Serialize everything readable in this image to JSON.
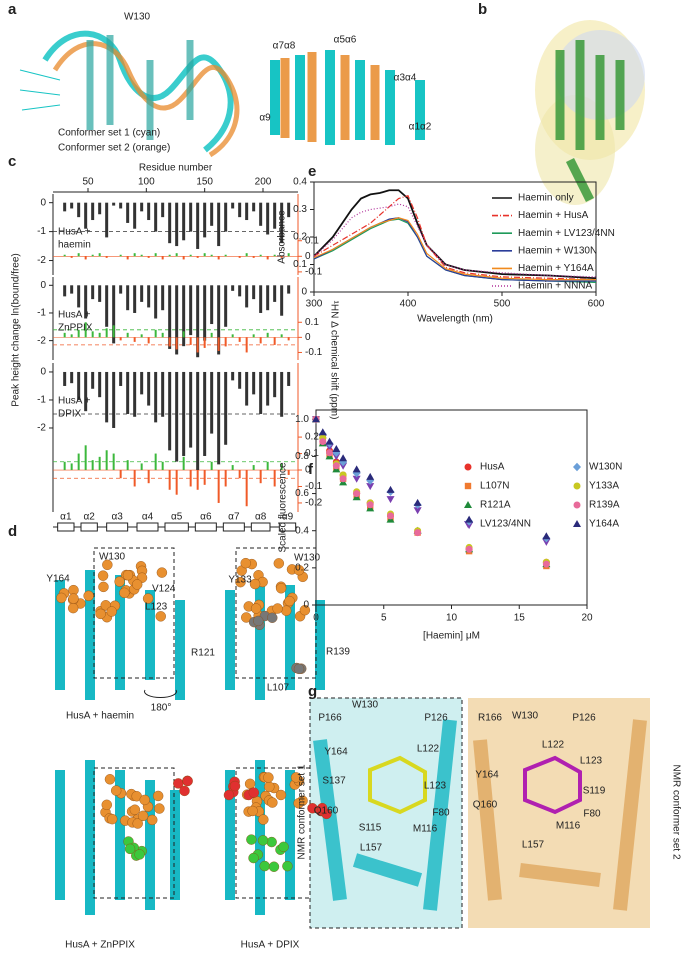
{
  "panels": {
    "a": {
      "label": "a",
      "annotations": [
        "W130",
        "α7α8",
        "α5α6",
        "α3α4",
        "α9",
        "α1α2"
      ],
      "legend": [
        "Conformer set 1 (cyan)",
        "Conformer set 2 (orange)"
      ]
    },
    "b": {
      "label": "b"
    },
    "c": {
      "label": "c"
    },
    "d": {
      "label": "d",
      "annotations": [
        "Y164",
        "W130",
        "V124",
        "L123",
        "Y133",
        "W130",
        "R121",
        "R139",
        "L107"
      ],
      "rotation": "180°",
      "captions": [
        "HusA + haemin",
        "HusA + ZnPPIX",
        "HusA + DPIX"
      ]
    },
    "e": {
      "label": "e"
    },
    "f": {
      "label": "f"
    },
    "g": {
      "label": "g",
      "annotations": [
        "P166",
        "W130",
        "P126",
        "Y164",
        "L122",
        "S137",
        "L123",
        "Q160",
        "S115",
        "M116",
        "F80",
        "L157",
        "R166",
        "W130",
        "P126",
        "L122",
        "L123",
        "Y164",
        "S119",
        "Q160",
        "F80",
        "M116",
        "L157"
      ],
      "side_labels": [
        "NMR conformer set 1",
        "NMR conformer set 2"
      ]
    }
  },
  "chart_data": [
    {
      "type": "bar",
      "xlabel": "Residue number",
      "ylabel": "Peak height change ln(bound/free)",
      "y2label": "¹HN Δ chemical shift (ppm)",
      "xlim": [
        20,
        230
      ],
      "xticks": [
        50,
        100,
        150,
        200
      ],
      "x": [
        30,
        36,
        42,
        48,
        54,
        60,
        66,
        72,
        78,
        84,
        90,
        96,
        102,
        108,
        114,
        120,
        126,
        132,
        138,
        144,
        150,
        156,
        162,
        168,
        174,
        180,
        186,
        192,
        198,
        204,
        210,
        216,
        222
      ],
      "color": "#333333",
      "color_positive": "#3cb83c",
      "color_negative": "#f05a28",
      "panels": [
        {
          "label": [
            "HusA +",
            "haemin"
          ],
          "ylim": [
            -2.5,
            0.3
          ],
          "yticks": [
            0,
            -1,
            -2
          ],
          "y2lim": [
            -0.12,
            0.4
          ],
          "y2ticks": [
            0.1,
            0,
            -0.1
          ],
          "values": [
            -0.3,
            -0.2,
            -0.5,
            -0.9,
            -0.6,
            -0.4,
            -1.2,
            -0.1,
            -0.2,
            -0.7,
            -0.9,
            -0.3,
            -0.6,
            -1.0,
            -0.5,
            -1.4,
            -1.5,
            -1.3,
            -1.0,
            -1.6,
            -1.2,
            -0.8,
            -1.5,
            -1.0,
            -0.2,
            -0.5,
            -0.6,
            -0.3,
            -0.8,
            -1.1,
            -0.9,
            -1.4,
            -0.5
          ],
          "shift": [
            0.01,
            -0.01,
            0.02,
            -0.02,
            0.01,
            0.02,
            -0.01,
            0,
            0.01,
            -0.02,
            0.02,
            0.01,
            -0.01,
            0.02,
            -0.02,
            0.01,
            0.02,
            -0.02,
            0.01,
            -0.01,
            0.02,
            0.01,
            -0.02,
            0.01,
            0,
            -0.01,
            0.02,
            -0.01,
            0.01,
            -0.02,
            0.01,
            -0.01,
            0.02
          ],
          "hlines": [
            {
              "axis": "y",
              "value": -1,
              "color": "#333333"
            }
          ]
        },
        {
          "label": [
            "HusA +",
            "ZnPPIX"
          ],
          "ylim": [
            -2.7,
            0.3
          ],
          "yticks": [
            0,
            -1,
            -2
          ],
          "y2lim": [
            -0.15,
            0.4
          ],
          "y2ticks": [
            0.1,
            0,
            -0.1
          ],
          "values": [
            -0.4,
            -0.3,
            -0.8,
            -1.2,
            -0.5,
            -0.6,
            -1.5,
            -2.1,
            -0.3,
            -0.9,
            -1.0,
            -0.6,
            -0.8,
            -1.2,
            -0.9,
            -2.3,
            -2.5,
            -2.2,
            -1.8,
            -2.6,
            -2.0,
            -1.4,
            -2.5,
            -1.5,
            -0.2,
            -0.4,
            -0.8,
            -0.5,
            -1.0,
            -0.9,
            -0.6,
            -1.1,
            -0.3
          ],
          "shift": [
            0.03,
            0.02,
            0.05,
            0.1,
            0.04,
            0.03,
            0.06,
            0.08,
            -0.02,
            0.03,
            -0.03,
            0.02,
            -0.04,
            0.05,
            0.03,
            -0.06,
            -0.08,
            0.04,
            -0.05,
            -0.1,
            -0.07,
            0.03,
            -0.09,
            -0.06,
            0.02,
            -0.03,
            -0.1,
            0.02,
            -0.04,
            0.03,
            -0.05,
            0.02,
            -0.02
          ],
          "hlines": [
            {
              "axis": "y2",
              "value": 0.05,
              "color": "#3cb83c"
            },
            {
              "axis": "y2",
              "value": -0.05,
              "color": "#f05a28"
            }
          ]
        },
        {
          "label": [
            "HusA +",
            "DPIX"
          ],
          "ylim": [
            -5,
            0.32
          ],
          "yticks": [
            0,
            -1,
            -2
          ],
          "y2lim": [
            -0.255,
            0.65
          ],
          "y2ticks": [
            0.2,
            0.1,
            0,
            -0.1,
            -0.2
          ],
          "values": [
            -0.5,
            -0.4,
            -1.0,
            -1.4,
            -0.6,
            -0.9,
            -1.8,
            -2.0,
            -0.5,
            -1.5,
            -1.6,
            -0.8,
            -1.2,
            -1.8,
            -1.6,
            -2.8,
            -3.2,
            -3.0,
            -2.7,
            -3.5,
            -3.0,
            -2.2,
            -3.3,
            -2.6,
            -0.3,
            -0.6,
            -1.2,
            -0.8,
            -1.5,
            -1.2,
            -0.9,
            -1.6,
            -0.5
          ],
          "shift": [
            0.05,
            0.04,
            0.1,
            0.15,
            0.06,
            0.08,
            0.12,
            0.1,
            -0.05,
            0.06,
            -0.1,
            0.04,
            -0.08,
            0.1,
            0.05,
            -0.12,
            -0.15,
            0.08,
            -0.1,
            -0.12,
            -0.09,
            0.05,
            -0.2,
            -0.1,
            0.03,
            -0.05,
            -0.22,
            0.03,
            -0.08,
            0.05,
            -0.1,
            0.04,
            -0.03
          ],
          "hlines": [
            {
              "axis": "y",
              "value": -1.5,
              "color": "#333333"
            },
            {
              "axis": "y2",
              "value": 0.05,
              "color": "#3cb83c"
            },
            {
              "axis": "y2",
              "value": -0.05,
              "color": "#f05a28"
            }
          ]
        }
      ],
      "helices": [
        {
          "label": "α1",
          "start": 24,
          "end": 38
        },
        {
          "label": "α2",
          "start": 44,
          "end": 58
        },
        {
          "label": "α3",
          "start": 66,
          "end": 84
        },
        {
          "label": "α4",
          "start": 92,
          "end": 110
        },
        {
          "label": "α5",
          "start": 116,
          "end": 136
        },
        {
          "label": "α6",
          "start": 142,
          "end": 160
        },
        {
          "label": "α7",
          "start": 166,
          "end": 184
        },
        {
          "label": "α8",
          "start": 190,
          "end": 206
        },
        {
          "label": "α9",
          "start": 214,
          "end": 228
        }
      ]
    },
    {
      "type": "line",
      "xlabel": "Wavelength (nm)",
      "ylabel": "Absorbance",
      "xlim": [
        300,
        600
      ],
      "xticks": [
        300,
        400,
        500,
        600
      ],
      "ylim": [
        0,
        0.4
      ],
      "yticks": [
        0,
        0.1,
        0.2,
        0.3,
        0.4
      ],
      "x": [
        300,
        320,
        340,
        350,
        360,
        370,
        380,
        390,
        400,
        410,
        420,
        440,
        460,
        500,
        550,
        600
      ],
      "series": [
        {
          "name": "Haemin only",
          "color": "#111111",
          "dash": "solid",
          "values": [
            0.13,
            0.2,
            0.3,
            0.34,
            0.355,
            0.36,
            0.37,
            0.37,
            0.34,
            0.25,
            0.17,
            0.1,
            0.08,
            0.065,
            0.06,
            0.05
          ]
        },
        {
          "name": "Haemin + HusA",
          "color": "#e8322a",
          "dash": "dashdot",
          "values": [
            0.13,
            0.17,
            0.21,
            0.23,
            0.25,
            0.28,
            0.31,
            0.34,
            0.35,
            0.27,
            0.17,
            0.09,
            0.07,
            0.055,
            0.05,
            0.045
          ]
        },
        {
          "name": "Haemin + LV123/4NN",
          "color": "#1f9a5a",
          "dash": "solid",
          "values": [
            0.12,
            0.15,
            0.19,
            0.21,
            0.23,
            0.245,
            0.26,
            0.265,
            0.25,
            0.2,
            0.13,
            0.08,
            0.06,
            0.045,
            0.04,
            0.035
          ]
        },
        {
          "name": "Haemin + W130N",
          "color": "#2b3d9a",
          "dash": "solid",
          "values": [
            0.12,
            0.155,
            0.195,
            0.215,
            0.235,
            0.25,
            0.265,
            0.27,
            0.255,
            0.2,
            0.13,
            0.08,
            0.06,
            0.045,
            0.04,
            0.04
          ]
        },
        {
          "name": "Haemin + Y164A",
          "color": "#f08a1e",
          "dash": "solid",
          "values": [
            0.125,
            0.155,
            0.195,
            0.215,
            0.235,
            0.25,
            0.26,
            0.27,
            0.26,
            0.21,
            0.14,
            0.085,
            0.065,
            0.05,
            0.045,
            0.045
          ]
        },
        {
          "name": "Haemin + NNNA",
          "color": "#b0309a",
          "dash": "dotted",
          "values": [
            0.13,
            0.19,
            0.27,
            0.29,
            0.3,
            0.305,
            0.31,
            0.32,
            0.31,
            0.24,
            0.17,
            0.1,
            0.08,
            0.07,
            0.06,
            0.055
          ]
        }
      ]
    },
    {
      "type": "scatter",
      "xlabel": "[Haemin] μM",
      "ylabel": "Scaled fluorescence",
      "xlim": [
        0,
        20
      ],
      "xticks": [
        0,
        5,
        10,
        15,
        20
      ],
      "ylim": [
        0,
        1.05
      ],
      "yticks": [
        0,
        0.2,
        0.4,
        0.6,
        0.8,
        {
          "value": 1,
          "label": "1.0"
        }
      ],
      "x": [
        0,
        0.5,
        1,
        1.5,
        2,
        3,
        4,
        5.5,
        7.5,
        11.3,
        17
      ],
      "series": [
        {
          "name": "HusA",
          "color": "#e8322a",
          "marker": "circle",
          "values": [
            1,
            0.9,
            0.83,
            0.77,
            0.7,
            0.6,
            0.55,
            0.48,
            0.39,
            0.3,
            0.23
          ]
        },
        {
          "name": "L107N",
          "color": "#f07a30",
          "marker": "square",
          "values": [
            1,
            0.88,
            0.81,
            0.74,
            0.68,
            0.59,
            0.53,
            0.47,
            0.39,
            0.29,
            0.21
          ]
        },
        {
          "name": "R121A",
          "color": "#1f8a3a",
          "marker": "triangle",
          "values": [
            1,
            0.87,
            0.8,
            0.73,
            0.66,
            0.58,
            0.52,
            0.46,
            0.4,
            0.3,
            0.22
          ]
        },
        {
          "name": "LV123/4NN",
          "color": "#7a3fb0",
          "marker": "triangle-down",
          "values": [
            1,
            0.9,
            0.85,
            0.8,
            0.75,
            0.68,
            0.64,
            0.57,
            0.51,
            0.43,
            0.34
          ]
        },
        {
          "name": "W130N",
          "color": "#6b9fd8",
          "marker": "diamond",
          "values": [
            1,
            0.92,
            0.87,
            0.82,
            0.77,
            0.71,
            0.67,
            0.61,
            0.54,
            0.45,
            0.36
          ]
        },
        {
          "name": "Y133A",
          "color": "#c8c820",
          "marker": "circle",
          "values": [
            1,
            0.9,
            0.82,
            0.76,
            0.7,
            0.61,
            0.55,
            0.49,
            0.4,
            0.31,
            0.23
          ]
        },
        {
          "name": "R139A",
          "color": "#e86a9a",
          "marker": "circle",
          "values": [
            1,
            0.88,
            0.82,
            0.75,
            0.68,
            0.6,
            0.54,
            0.48,
            0.39,
            0.3,
            0.22
          ]
        },
        {
          "name": "Y164A",
          "color": "#2a2a7a",
          "marker": "triangle",
          "values": [
            1,
            0.93,
            0.88,
            0.84,
            0.79,
            0.73,
            0.69,
            0.62,
            0.55,
            0.46,
            0.37
          ]
        }
      ]
    }
  ]
}
